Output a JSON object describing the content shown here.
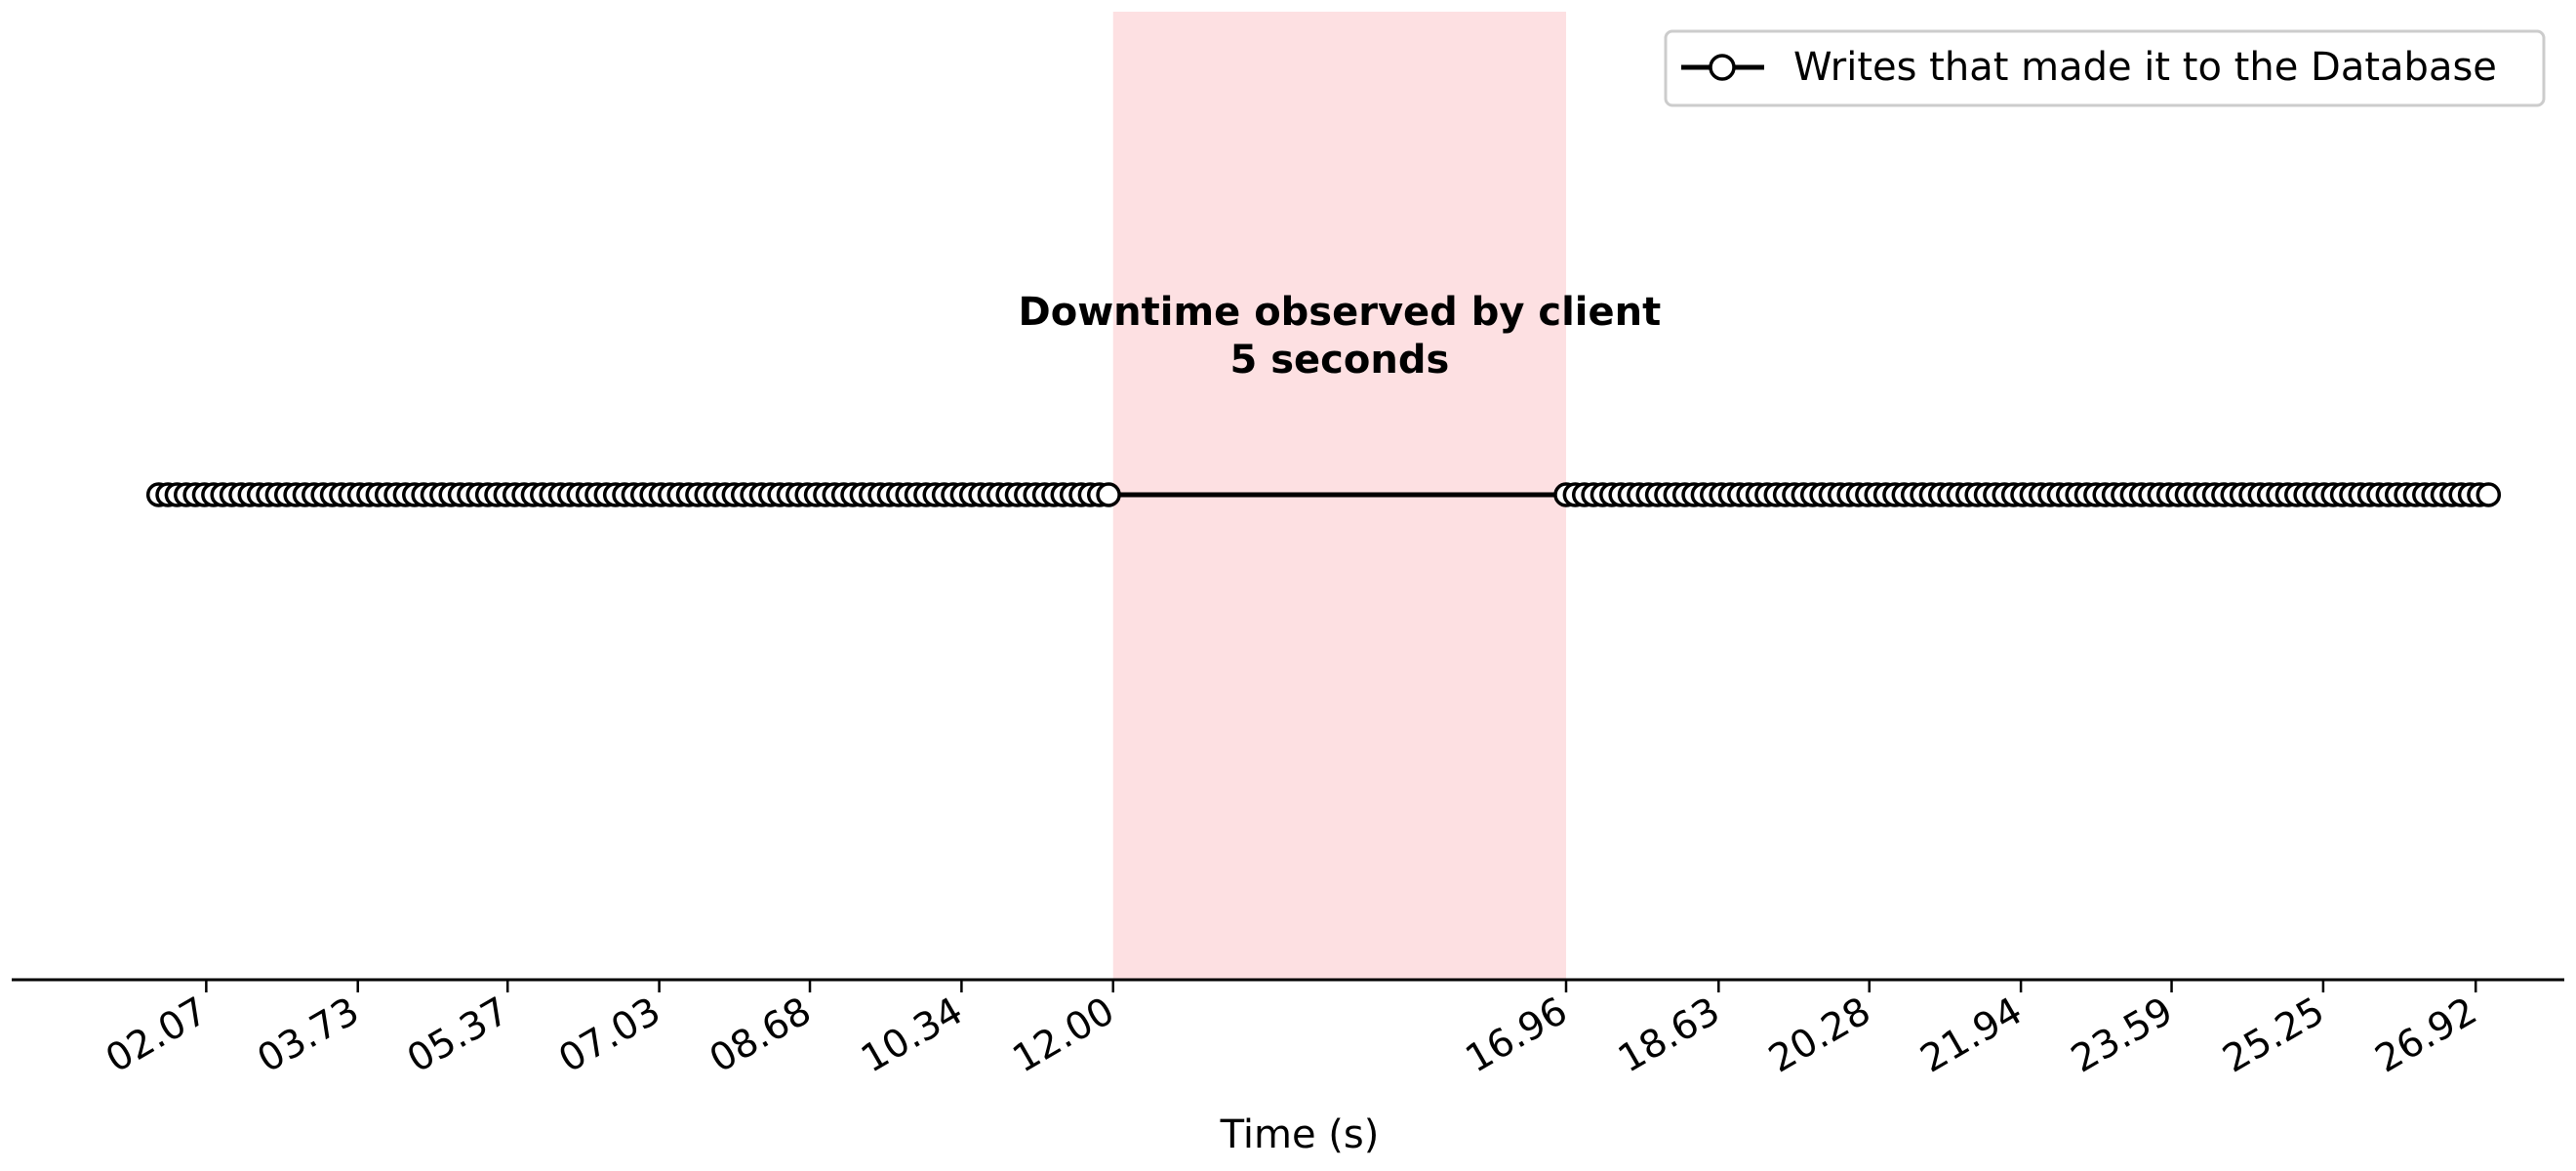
{
  "chart_data": {
    "type": "line",
    "title": "",
    "xlabel": "Time (s)",
    "ylabel": "",
    "x_tick_labels": [
      "02.07",
      "03.73",
      "05.37",
      "07.03",
      "08.68",
      "10.34",
      "12.00",
      "16.96",
      "18.63",
      "20.28",
      "21.94",
      "23.59",
      "25.25",
      "26.92"
    ],
    "x_ticks": [
      2.07,
      3.73,
      5.37,
      7.03,
      8.68,
      10.34,
      12.0,
      16.96,
      18.63,
      20.28,
      21.94,
      23.59,
      25.25,
      26.92
    ],
    "xlim": [
      -0.06,
      27.89
    ],
    "y_value": 1,
    "series": [
      {
        "name": "Writes that made it to the Database",
        "segments": [
          {
            "start": 1.55,
            "end": 12.0,
            "step": 0.1
          },
          {
            "start": 16.96,
            "end": 27.1,
            "step": 0.1
          }
        ]
      }
    ],
    "highlight": {
      "x_start": 12.0,
      "x_end": 16.96,
      "color": "#fde0e2",
      "label_line1": "Downtime observed by client",
      "label_line2": "5 seconds"
    },
    "legend": {
      "position": "top-right",
      "label": "Writes that made it to the Database"
    },
    "grid": false,
    "line_color": "#000000",
    "marker_fill": "#ffffff",
    "marker_edge": "#000000"
  }
}
